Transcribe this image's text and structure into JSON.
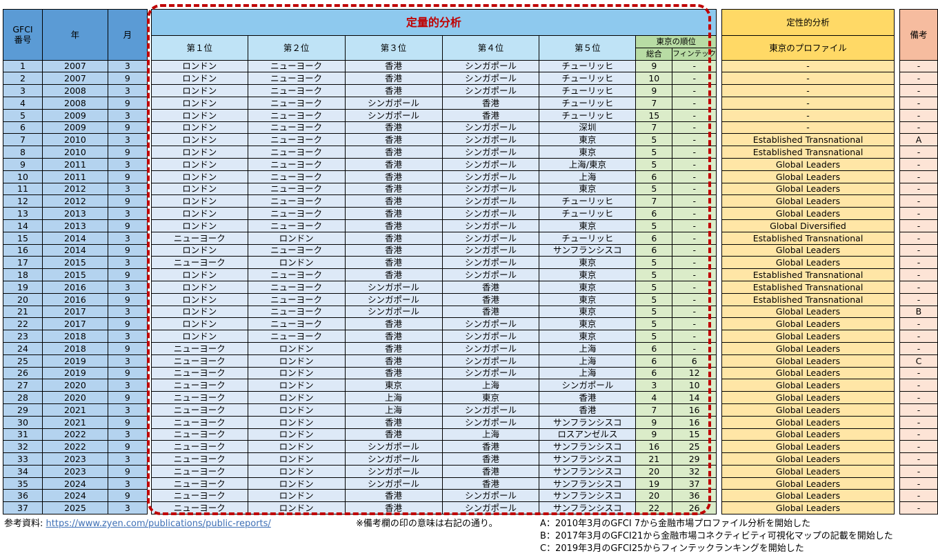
{
  "header": {
    "gfci": "GFCI\n番号",
    "year": "年",
    "month": "月",
    "quant": "定量的分析",
    "ranks": [
      "第１位",
      "第２位",
      "第３位",
      "第４位",
      "第５位"
    ],
    "tokyo_rank": "東京の順位",
    "overall": "総合",
    "fintech": "フィンテック",
    "qual": "定性的分析",
    "profile": "東京のプロファイル",
    "remarks": "備考"
  },
  "rows": [
    [
      "1",
      "2007",
      "3",
      "ロンドン",
      "ニューヨーク",
      "香港",
      "シンガポール",
      "チューリッヒ",
      "9",
      "-",
      "-",
      "-"
    ],
    [
      "2",
      "2007",
      "9",
      "ロンドン",
      "ニューヨーク",
      "香港",
      "シンガポール",
      "チューリッヒ",
      "10",
      "-",
      "-",
      "-"
    ],
    [
      "3",
      "2008",
      "3",
      "ロンドン",
      "ニューヨーク",
      "香港",
      "シンガポール",
      "チューリッヒ",
      "9",
      "-",
      "-",
      "-"
    ],
    [
      "4",
      "2008",
      "9",
      "ロンドン",
      "ニューヨーク",
      "シンガポール",
      "香港",
      "チューリッヒ",
      "7",
      "-",
      "-",
      "-"
    ],
    [
      "5",
      "2009",
      "3",
      "ロンドン",
      "ニューヨーク",
      "シンガポール",
      "香港",
      "チューリッヒ",
      "15",
      "-",
      "-",
      "-"
    ],
    [
      "6",
      "2009",
      "9",
      "ロンドン",
      "ニューヨーク",
      "香港",
      "シンガポール",
      "深圳",
      "7",
      "-",
      "-",
      "-"
    ],
    [
      "7",
      "2010",
      "3",
      "ロンドン",
      "ニューヨーク",
      "香港",
      "シンガポール",
      "東京",
      "5",
      "-",
      "Established Transnational",
      "A"
    ],
    [
      "8",
      "2010",
      "9",
      "ロンドン",
      "ニューヨーク",
      "香港",
      "シンガポール",
      "東京",
      "5",
      "-",
      "Established Transnational",
      "-"
    ],
    [
      "9",
      "2011",
      "3",
      "ロンドン",
      "ニューヨーク",
      "香港",
      "シンガポール",
      "上海/東京",
      "5",
      "-",
      "Global Leaders",
      "-"
    ],
    [
      "10",
      "2011",
      "9",
      "ロンドン",
      "ニューヨーク",
      "香港",
      "シンガポール",
      "上海",
      "6",
      "-",
      "Global Leaders",
      "-"
    ],
    [
      "11",
      "2012",
      "3",
      "ロンドン",
      "ニューヨーク",
      "香港",
      "シンガポール",
      "東京",
      "5",
      "-",
      "Global Leaders",
      "-"
    ],
    [
      "12",
      "2012",
      "9",
      "ロンドン",
      "ニューヨーク",
      "香港",
      "シンガポール",
      "チューリッヒ",
      "7",
      "-",
      "Global Leaders",
      "-"
    ],
    [
      "13",
      "2013",
      "3",
      "ロンドン",
      "ニューヨーク",
      "香港",
      "シンガポール",
      "チューリッヒ",
      "6",
      "-",
      "Global Leaders",
      "-"
    ],
    [
      "14",
      "2013",
      "9",
      "ロンドン",
      "ニューヨーク",
      "香港",
      "シンガポール",
      "東京",
      "5",
      "-",
      "Global Diversified",
      "-"
    ],
    [
      "15",
      "2014",
      "3",
      "ニューヨーク",
      "ロンドン",
      "香港",
      "シンガポール",
      "チューリッヒ",
      "6",
      "-",
      "Established Transnational",
      "-"
    ],
    [
      "16",
      "2014",
      "9",
      "ロンドン",
      "ニューヨーク",
      "香港",
      "シンガポール",
      "サンフランシスコ",
      "6",
      "-",
      "Global Leaders",
      "-"
    ],
    [
      "17",
      "2015",
      "3",
      "ニューヨーク",
      "ロンドン",
      "香港",
      "シンガポール",
      "東京",
      "5",
      "-",
      "Global Leaders",
      "-"
    ],
    [
      "18",
      "2015",
      "9",
      "ロンドン",
      "ニューヨーク",
      "香港",
      "シンガポール",
      "東京",
      "5",
      "-",
      "Established Transnational",
      "-"
    ],
    [
      "19",
      "2016",
      "3",
      "ロンドン",
      "ニューヨーク",
      "シンガポール",
      "香港",
      "東京",
      "5",
      "-",
      "Established Transnational",
      "-"
    ],
    [
      "20",
      "2016",
      "9",
      "ロンドン",
      "ニューヨーク",
      "シンガポール",
      "香港",
      "東京",
      "5",
      "-",
      "Established Transnational",
      "-"
    ],
    [
      "21",
      "2017",
      "3",
      "ロンドン",
      "ニューヨーク",
      "シンガポール",
      "香港",
      "東京",
      "5",
      "-",
      "Global Leaders",
      "B"
    ],
    [
      "22",
      "2017",
      "9",
      "ロンドン",
      "ニューヨーク",
      "香港",
      "シンガポール",
      "東京",
      "5",
      "-",
      "Global Leaders",
      "-"
    ],
    [
      "23",
      "2018",
      "3",
      "ロンドン",
      "ニューヨーク",
      "香港",
      "シンガポール",
      "東京",
      "5",
      "-",
      "Global Leaders",
      "-"
    ],
    [
      "24",
      "2018",
      "9",
      "ニューヨーク",
      "ロンドン",
      "香港",
      "シンガポール",
      "上海",
      "6",
      "-",
      "Global Leaders",
      "-"
    ],
    [
      "25",
      "2019",
      "3",
      "ニューヨーク",
      "ロンドン",
      "香港",
      "シンガポール",
      "上海",
      "6",
      "6",
      "Global Leaders",
      "C"
    ],
    [
      "26",
      "2019",
      "9",
      "ニューヨーク",
      "ロンドン",
      "香港",
      "シンガポール",
      "上海",
      "6",
      "12",
      "Global Leaders",
      "-"
    ],
    [
      "27",
      "2020",
      "3",
      "ニューヨーク",
      "ロンドン",
      "東京",
      "上海",
      "シンガポール",
      "3",
      "10",
      "Global Leaders",
      "-"
    ],
    [
      "28",
      "2020",
      "9",
      "ニューヨーク",
      "ロンドン",
      "上海",
      "東京",
      "香港",
      "4",
      "14",
      "Global Leaders",
      "-"
    ],
    [
      "29",
      "2021",
      "3",
      "ニューヨーク",
      "ロンドン",
      "上海",
      "シンガポール",
      "香港",
      "7",
      "16",
      "Global Leaders",
      "-"
    ],
    [
      "30",
      "2021",
      "9",
      "ニューヨーク",
      "ロンドン",
      "香港",
      "シンガポール",
      "サンフランシスコ",
      "9",
      "16",
      "Global Leaders",
      "-"
    ],
    [
      "31",
      "2022",
      "3",
      "ニューヨーク",
      "ロンドン",
      "香港",
      "上海",
      "ロスアンゼルス",
      "9",
      "15",
      "Global Leaders",
      "-"
    ],
    [
      "32",
      "2022",
      "9",
      "ニューヨーク",
      "ロンドン",
      "シンガポール",
      "香港",
      "サンフランシスコ",
      "16",
      "25",
      "Global Leaders",
      "-"
    ],
    [
      "33",
      "2023",
      "3",
      "ニューヨーク",
      "ロンドン",
      "シンガポール",
      "香港",
      "サンフランシスコ",
      "21",
      "29",
      "Global Leaders",
      "-"
    ],
    [
      "34",
      "2023",
      "9",
      "ニューヨーク",
      "ロンドン",
      "シンガポール",
      "香港",
      "サンフランシスコ",
      "20",
      "32",
      "Global Leaders",
      "-"
    ],
    [
      "35",
      "2024",
      "3",
      "ニューヨーク",
      "ロンドン",
      "シンガポール",
      "香港",
      "サンフランシスコ",
      "19",
      "37",
      "Global Leaders",
      "-"
    ],
    [
      "36",
      "2024",
      "9",
      "ニューヨーク",
      "ロンドン",
      "香港",
      "シンガポール",
      "サンフランシスコ",
      "20",
      "36",
      "Global Leaders",
      "-"
    ],
    [
      "37",
      "2025",
      "3",
      "ニューヨーク",
      "ロンドン",
      "香港",
      "シンガポール",
      "サンフランシスコ",
      "22",
      "26",
      "Global Leaders",
      "-"
    ]
  ],
  "footer": {
    "ref_label": "参考資料:",
    "ref_url": "https://www.zyen.com/publications/public-reports/",
    "note": "※備考欄の印の意味は右記の通り。",
    "notes": [
      "A：2010年3月のGFCI 7から金融市場プロファイル分析を開始した",
      "B：2017年3月のGFCI21から金融市場コネクティビティ可視化マップの記載を開始した",
      "C：2019年3月のGFCI25からフィンテックランキングを開始した"
    ]
  },
  "colors": {
    "header_blue": "#5b9bd5",
    "quant_header": "#8ec9ee",
    "quant_title": "#c00000",
    "rank_header": "#bfe3f6",
    "tokyo_rank_header": "#b8dca4",
    "qual_header": "#ffd966",
    "remarks_header": "#f6bc9f",
    "left_cells": "#b4d3ef",
    "rank_cells": "#dde9f7",
    "tokyo_cells": "#dbecc9",
    "profile_cells": "#ffe6a6",
    "remarks_cells": "#fde4d6",
    "dashed_border": "#c00000",
    "link": "#3d6fb5"
  }
}
